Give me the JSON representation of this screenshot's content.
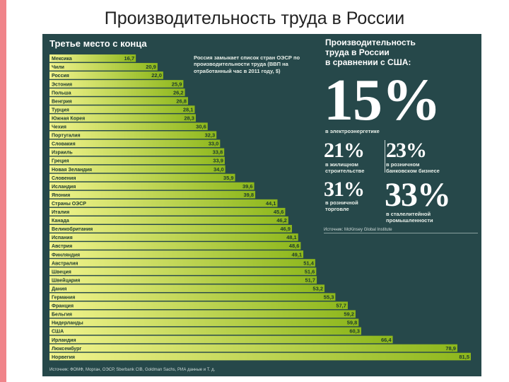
{
  "slide_title": "Производительность труда в России",
  "colors": {
    "background": "#26484a",
    "bar_light": "#f2f48e",
    "bar_dark": "#8db71c",
    "accent": "#f0848a"
  },
  "infographic": {
    "chart_heading": "Третье место с конца",
    "note": "Россия замыкает список стран ОЭСР по производительности труда (ВВП на отработанный час в 2011 году, $)",
    "right_title": "Производительность\nтруда в России\nв сравнении с США:",
    "stats": [
      {
        "value": "15%",
        "desc": "в электроэнергетике"
      },
      {
        "value": "21%",
        "desc": "в жилищном\nстроительстве"
      },
      {
        "value": "23%",
        "desc": "в розничном\nбанковском бизнесе"
      },
      {
        "value": "31%",
        "desc": "в розничной\nторговле"
      },
      {
        "value": "33%",
        "desc": "в сталелитейной\nпромышленности"
      }
    ],
    "source_right": "Источник: McKinsey Global Institute",
    "source_bottom": "Источник: ФОМФ, Морган, ОЭСР, Sberbank CIB, Goldman Sachs, РИА данные и Т. д."
  },
  "chart_data": {
    "type": "bar",
    "orientation": "horizontal",
    "title": "Третье место с конца",
    "categories": [
      "Мексика",
      "Чили",
      "Россия",
      "Эстония",
      "Польша",
      "Венгрия",
      "Турция",
      "Южная Корея",
      "Чехия",
      "Португалия",
      "Словакия",
      "Израиль",
      "Греция",
      "Новая Зеландия",
      "Словения",
      "Исландия",
      "Япония",
      "Страны ОЭСР",
      "Италия",
      "Канада",
      "Великобритания",
      "Испания",
      "Австрия",
      "Финляндия",
      "Австралия",
      "Швеция",
      "Швейцария",
      "Дания",
      "Германия",
      "Франция",
      "Бельгия",
      "Нидерланды",
      "США",
      "Ирландия",
      "Люксембург",
      "Норвегия"
    ],
    "values": [
      16.7,
      20.9,
      22.0,
      25.9,
      26.2,
      26.8,
      28.1,
      28.3,
      30.6,
      32.3,
      33.0,
      33.8,
      33.9,
      34.0,
      35.9,
      39.6,
      39.8,
      44.1,
      45.6,
      46.2,
      46.9,
      48.1,
      48.6,
      49.1,
      51.4,
      51.6,
      51.7,
      53.2,
      55.3,
      57.7,
      59.2,
      59.8,
      60.3,
      66.4,
      78.9,
      81.5
    ],
    "value_labels": [
      "16,7",
      "20,9",
      "22,0",
      "25,9",
      "26,2",
      "26,8",
      "28,1",
      "28,3",
      "30,6",
      "32,3",
      "33,0",
      "33,8",
      "33,9",
      "34,0",
      "35,9",
      "39,6",
      "39,8",
      "44,1",
      "45,6",
      "46,2",
      "46,9",
      "48,1",
      "48,6",
      "49,1",
      "51,4",
      "51,6",
      "51,7",
      "53,2",
      "55,3",
      "57,7",
      "59,2",
      "59,8",
      "60,3",
      "66,4",
      "78,9",
      "81,5"
    ]
  }
}
